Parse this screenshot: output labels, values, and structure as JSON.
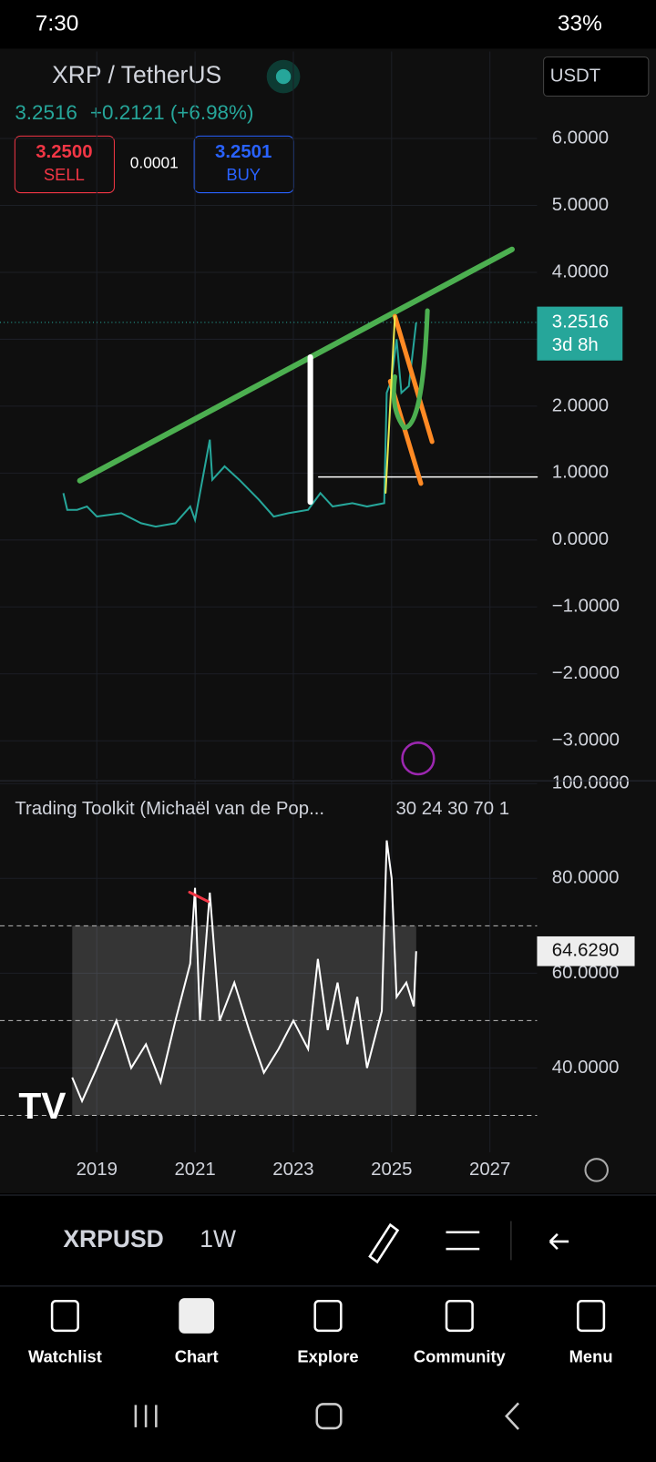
{
  "status_bar": {
    "time": "7:30",
    "battery": "33%"
  },
  "header": {
    "symbol": "XRP / TetherUS",
    "price": "3.2516",
    "change": "+0.2121 (+6.98%)",
    "currency": "USDT",
    "sell_price": "3.2500",
    "sell_label": "SELL",
    "spread": "0.0001",
    "buy_price": "3.2501",
    "buy_label": "BUY"
  },
  "chart_data": [
    {
      "type": "line",
      "color": "#26a69a",
      "x": [
        2018.32,
        2018.4,
        2018.6,
        2018.8,
        2019.0,
        2019.5,
        2019.9,
        2020.2,
        2020.6,
        2020.9,
        2021.0,
        2021.3,
        2021.35,
        2021.6,
        2021.9,
        2022.3,
        2022.6,
        2022.9,
        2023.3,
        2023.55,
        2023.8,
        2024.2,
        2024.5,
        2024.85,
        2024.9,
        2025.0,
        2025.1,
        2025.2,
        2025.35,
        2025.5
      ],
      "values": [
        0.7,
        0.45,
        0.45,
        0.5,
        0.35,
        0.4,
        0.25,
        0.2,
        0.25,
        0.5,
        0.3,
        1.5,
        0.9,
        1.1,
        0.9,
        0.6,
        0.35,
        0.4,
        0.45,
        0.7,
        0.5,
        0.55,
        0.5,
        0.55,
        2.2,
        2.4,
        3.0,
        2.2,
        2.3,
        3.25
      ],
      "xlim": [
        2017.03,
        2027.96
      ],
      "ylim": [
        -3.57,
        7.3
      ],
      "yticks": [
        {
          "value": 6,
          "label": "6.0000"
        },
        {
          "value": 5,
          "label": "5.0000"
        },
        {
          "value": 4,
          "label": "4.0000"
        },
        {
          "value": 3,
          "label": "3.0000"
        },
        {
          "value": 2,
          "label": "2.0000"
        },
        {
          "value": 1,
          "label": "1.0000"
        },
        {
          "value": 0,
          "label": "0.0000"
        },
        {
          "value": -1,
          "label": "−1.0000"
        },
        {
          "value": -2,
          "label": "−2.0000"
        },
        {
          "value": -3,
          "label": "−3.0000"
        }
      ],
      "last_value": 3.2516,
      "countdown": "3d 8h"
    },
    {
      "type": "line",
      "title": "Trading Toolkit (Michaël van de Pop...",
      "params": "30 24 30 70 1",
      "color": "#ffffff",
      "x": [
        2018.5,
        2018.7,
        2019.0,
        2019.4,
        2019.7,
        2020.0,
        2020.3,
        2020.6,
        2020.9,
        2021.0,
        2021.1,
        2021.3,
        2021.5,
        2021.8,
        2022.1,
        2022.4,
        2022.7,
        2023.0,
        2023.3,
        2023.5,
        2023.7,
        2023.9,
        2024.1,
        2024.3,
        2024.5,
        2024.8,
        2024.9,
        2025.0,
        2025.1,
        2025.3,
        2025.45,
        2025.5
      ],
      "values": [
        38,
        33,
        40,
        50,
        40,
        45,
        37,
        50,
        62,
        78,
        50,
        77,
        50,
        58,
        48,
        39,
        44,
        50,
        44,
        63,
        48,
        58,
        45,
        55,
        40,
        52,
        88,
        80,
        55,
        58,
        53,
        64.629
      ],
      "xlim": [
        2017.03,
        2027.96
      ],
      "ylim": [
        22.2,
        100.6
      ],
      "xticks": [
        2019,
        2021,
        2023,
        2025,
        2027
      ],
      "yticks": [
        {
          "value": 100,
          "label": "100.0000"
        },
        {
          "value": 80,
          "label": "80.0000"
        },
        {
          "value": 60,
          "label": "60.0000"
        },
        {
          "value": 40,
          "label": "40.0000"
        }
      ],
      "levels": [
        70,
        50,
        30
      ],
      "last_value_label": "64.6290"
    }
  ],
  "toolbar": {
    "symbol": "XRPUSD",
    "interval": "1W"
  },
  "nav": [
    "Watchlist",
    "Chart",
    "Explore",
    "Community",
    "Menu"
  ]
}
